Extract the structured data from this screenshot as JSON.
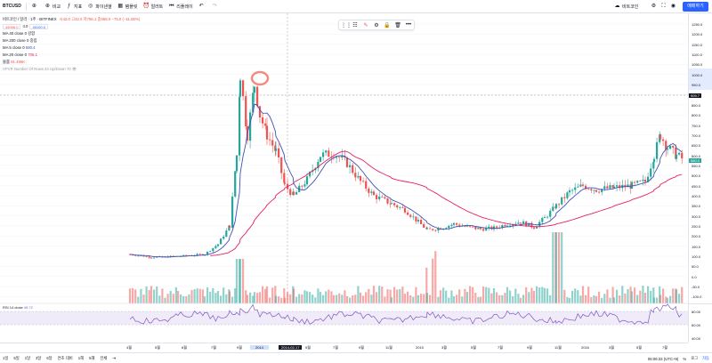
{
  "toolbar": {
    "symbol": "BTCUSD",
    "add_label": "비교",
    "indicators_label": "지표",
    "favorites_label": "",
    "replay_label": "",
    "layout_label": "",
    "buttons": [
      "비교",
      "지표",
      "파이낸셜",
      "템플릿",
      "얼러트",
      "리플레이"
    ],
    "right_items": [
      "비트코인",
      "매매하기"
    ],
    "trade_label": "매매하기"
  },
  "legend": {
    "title": "비트코인 / 달러 · 1주 · BITFINEX",
    "ohlc": "시42.0 고42.0 저756.1 종558.0 −75.0 (−11.85%)",
    "bid": "45096.0",
    "spread": "4.0",
    "ask": "45100.0",
    "ma_rows": [
      {
        "label": "MA 40 close 0",
        "value": "강함"
      },
      {
        "label": "MA 200 close 0",
        "value": "중립"
      },
      {
        "label": "MA 5 close 0",
        "value": "580.4"
      },
      {
        "label": "MA 20 close 0",
        "value": "705.1"
      }
    ],
    "volume_label": "볼륨",
    "volume_value": "91.495K",
    "vpvr_label": "VPVR Number Of Rows 24 Up/Down 70"
  },
  "rsi": {
    "label": "RSI 14 close",
    "value": "49.72"
  },
  "price_scale": [
    "1250.0",
    "1200.0",
    "1150.0",
    "1100.0",
    "1050.0",
    "1000.0",
    "950.0",
    "900.0",
    "850.0",
    "800.0",
    "750.0",
    "700.0",
    "650.0",
    "600.0",
    "550.0",
    "500.0",
    "450.0",
    "400.0",
    "350.0",
    "300.0",
    "250.0",
    "200.0",
    "150.0",
    "100.0",
    "50.0",
    "0.0",
    "-50.0",
    "-100.0"
  ],
  "price_current": "580.0",
  "price_crosshair": "905.7",
  "rsi_scale": [
    "80.00",
    "60.00",
    "40.00"
  ],
  "time_axis": [
    "4월",
    "5월",
    "6월",
    "7월",
    "9월",
    "2014",
    "2014-02-17",
    "5월",
    "7월",
    "9월",
    "11월",
    "2015",
    "3월",
    "5월",
    "7월",
    "9월",
    "11월",
    "2016",
    "3월",
    "5월",
    "7월"
  ],
  "bottom": {
    "ranges": [
      "1일",
      "5일",
      "1달",
      "3달",
      "6달",
      "연초 대비",
      "1해",
      "5해",
      "전체"
    ],
    "clock": "06:06:33 (UTC+9)",
    "options": [
      "%",
      "로그",
      "자동"
    ]
  },
  "colors": {
    "up": "#26a69a",
    "down": "#ef5350",
    "ma_short": "#3f51b5",
    "ma_long": "#e91e63",
    "accent": "#2962ff"
  }
}
